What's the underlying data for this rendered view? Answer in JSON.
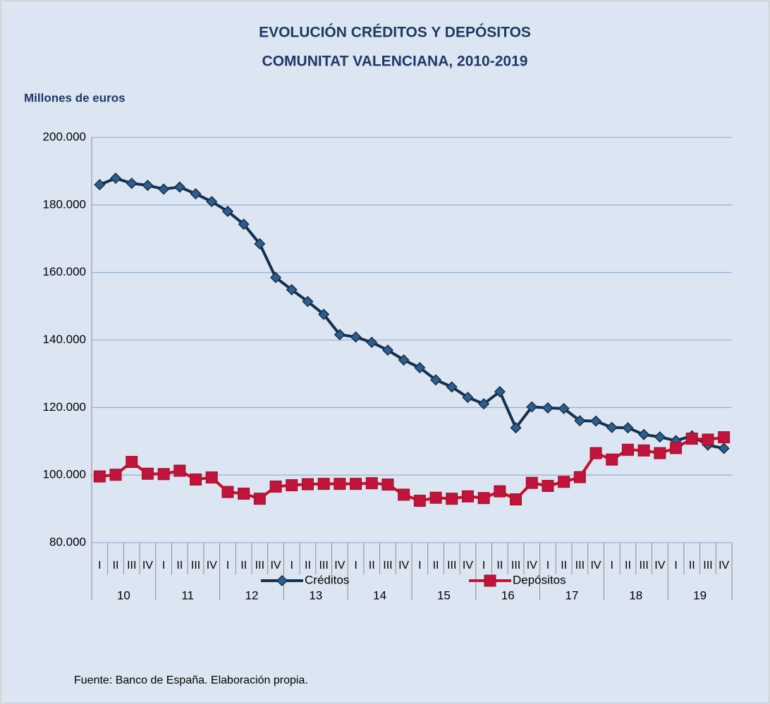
{
  "chart_data": {
    "type": "line",
    "title": "EVOLUCIÓN CRÉDITOS Y DEPÓSITOS",
    "subtitle": "COMUNITAT VALENCIANA, 2010-2019",
    "y_label": "Millones de euros",
    "source": "Fuente: Banco de España. Elaboración propia.",
    "categories": [
      "I",
      "II",
      "III",
      "IV",
      "I",
      "II",
      "III",
      "IV",
      "I",
      "II",
      "III",
      "IV",
      "I",
      "II",
      "III",
      "IV",
      "I",
      "II",
      "III",
      "IV",
      "I",
      "II",
      "III",
      "IV",
      "I",
      "II",
      "III",
      "IV",
      "I",
      "II",
      "III",
      "IV",
      "I",
      "II",
      "III",
      "IV",
      "I",
      "II",
      "III",
      "IV"
    ],
    "groups": [
      "10",
      "11",
      "12",
      "13",
      "14",
      "15",
      "16",
      "17",
      "18",
      "19"
    ],
    "series": [
      {
        "name": "Créditos",
        "color": "#14304f",
        "marker_color": "#2f5e8c",
        "marker": "diamond",
        "values": [
          186000,
          187900,
          186400,
          185800,
          184700,
          185300,
          183300,
          181000,
          178100,
          174300,
          168500,
          158500,
          154900,
          151400,
          147600,
          141600,
          140900,
          139300,
          137000,
          134100,
          131800,
          128200,
          126100,
          123000,
          121100,
          124700,
          114000,
          120200,
          119900,
          119700,
          116100,
          116000,
          114100,
          114000,
          112000,
          111300,
          110200,
          111600,
          108900,
          107900
        ]
      },
      {
        "name": "Depósitos",
        "color": "#c8102e",
        "marker_color": "#c0143c",
        "marker": "square",
        "values": [
          99600,
          100100,
          103900,
          100400,
          100300,
          101300,
          98700,
          99300,
          95000,
          94500,
          93000,
          96600,
          97000,
          97300,
          97400,
          97400,
          97400,
          97600,
          97200,
          94200,
          92400,
          93300,
          93000,
          93700,
          93200,
          95200,
          92800,
          97700,
          96800,
          98000,
          99400,
          106500,
          104600,
          107500,
          107300,
          106500,
          108000,
          110800,
          110500,
          111200
        ]
      }
    ],
    "ylim": [
      80000,
      200000
    ],
    "yticks": [
      {
        "value": 80000,
        "label": "80.000"
      },
      {
        "value": 100000,
        "label": "100.000"
      },
      {
        "value": 120000,
        "label": "120.000"
      },
      {
        "value": 140000,
        "label": "140.000"
      },
      {
        "value": 160000,
        "label": "160.000"
      },
      {
        "value": 180000,
        "label": "180.000"
      },
      {
        "value": 200000,
        "label": "200.000"
      }
    ],
    "grid": true
  }
}
